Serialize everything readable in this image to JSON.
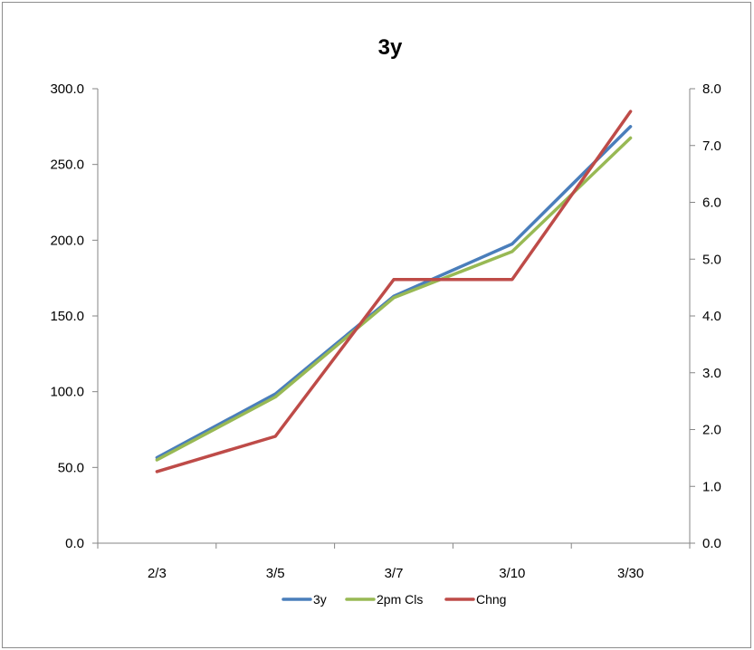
{
  "chart_data": {
    "type": "line",
    "title": "3y",
    "categories": [
      "2/3",
      "3/5",
      "3/7",
      "3/10",
      "3/30"
    ],
    "series": [
      {
        "name": "3y",
        "axis": "left",
        "color": "#4a7ebb",
        "values": [
          56.5,
          98.5,
          163.0,
          197.5,
          275.0
        ]
      },
      {
        "name": "2pm Cls",
        "axis": "left",
        "color": "#98b954",
        "values": [
          55.0,
          96.5,
          162.0,
          192.5,
          267.5
        ]
      },
      {
        "name": "Chng",
        "axis": "right",
        "color": "#be4b48",
        "values": [
          1.26,
          1.88,
          4.64,
          4.64,
          7.6
        ]
      }
    ],
    "y_left": {
      "ylim": [
        0,
        300
      ],
      "ticks": [
        "0.0",
        "50.0",
        "100.0",
        "150.0",
        "200.0",
        "250.0",
        "300.0"
      ]
    },
    "y_right": {
      "ylim": [
        0,
        8
      ],
      "ticks": [
        "0.0",
        "1.0",
        "2.0",
        "3.0",
        "4.0",
        "5.0",
        "6.0",
        "7.0",
        "8.0"
      ]
    },
    "grid": false,
    "legend_position": "bottom"
  }
}
